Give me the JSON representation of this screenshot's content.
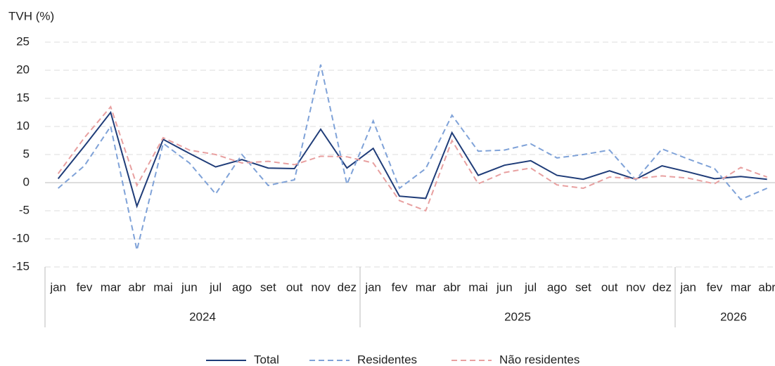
{
  "chart_data": {
    "type": "line",
    "y_axis_label": "TVH (%)",
    "categories": [
      "jan",
      "fev",
      "mar",
      "abr",
      "mai",
      "jun",
      "jul",
      "ago",
      "set",
      "out",
      "nov",
      "dez",
      "jan",
      "fev",
      "mar",
      "abr",
      "mai",
      "jun",
      "jul",
      "ago",
      "set",
      "out",
      "nov",
      "dez",
      "jan",
      "fev",
      "mar",
      "abr"
    ],
    "groups": [
      {
        "label": "2024",
        "span": 12
      },
      {
        "label": "2025",
        "span": 12
      },
      {
        "label": "2026",
        "span": 4
      }
    ],
    "series": [
      {
        "name": "Total",
        "color": "#1f3c78",
        "dash": "solid",
        "values": [
          0.7,
          6.5,
          12.5,
          -4.2,
          7.7,
          5.2,
          2.8,
          4.1,
          2.6,
          2.5,
          9.5,
          2.6,
          6.1,
          -2.4,
          -2.8,
          8.9,
          1.3,
          3.1,
          3.9,
          1.3,
          0.6,
          2.1,
          0.6,
          3.0,
          1.9,
          0.7,
          1.1,
          0.6
        ]
      },
      {
        "name": "Residentes",
        "color": "#7fa2d8",
        "dash": "dashed",
        "values": [
          -1.0,
          3.0,
          10.0,
          -12.0,
          7.0,
          3.5,
          -2.0,
          5.0,
          -0.5,
          0.5,
          21.0,
          -0.3,
          11.0,
          -1.0,
          2.5,
          12.0,
          5.6,
          5.8,
          6.9,
          4.4,
          5.0,
          5.8,
          0.5,
          6.0,
          4.2,
          2.5,
          -3.0,
          -1.0
        ]
      },
      {
        "name": "Não residentes",
        "color": "#e8a0a0",
        "dash": "dashed",
        "values": [
          1.6,
          8.0,
          13.5,
          -0.5,
          8.0,
          5.8,
          5.0,
          3.5,
          3.8,
          3.2,
          4.7,
          4.6,
          3.5,
          -3.2,
          -5.0,
          7.5,
          -0.2,
          1.8,
          2.6,
          -0.4,
          -1.0,
          1.0,
          0.7,
          1.2,
          0.8,
          -0.2,
          2.7,
          1.0
        ]
      }
    ],
    "ylim": [
      -15,
      25
    ],
    "yticks": [
      -15,
      -10,
      -5,
      0,
      5,
      10,
      15,
      20,
      25
    ],
    "grid": true,
    "legend": "bottom"
  }
}
